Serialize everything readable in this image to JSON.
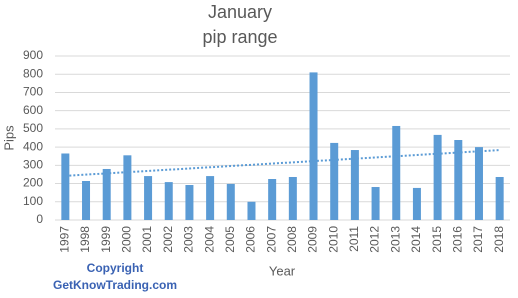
{
  "chart_data": {
    "type": "bar",
    "title": [
      "January",
      "pip range"
    ],
    "y_label": "Pips",
    "x_label": "Year",
    "annotations": [
      "Copyright",
      "GetKnowTrading.com"
    ],
    "categories": [
      "1997",
      "1998",
      "1999",
      "2000",
      "2001",
      "2002",
      "2003",
      "2004",
      "2005",
      "2006",
      "2007",
      "2008",
      "2009",
      "2010",
      "2011",
      "2012",
      "2013",
      "2014",
      "2015",
      "2016",
      "2017",
      "2018"
    ],
    "values": [
      365,
      214,
      280,
      355,
      241,
      208,
      192,
      241,
      198,
      100,
      225,
      236,
      810,
      423,
      384,
      181,
      516,
      176,
      467,
      439,
      400,
      236
    ],
    "color": "#5b9bd5",
    "ylim": [
      0,
      900
    ],
    "yticks": [
      0,
      100,
      200,
      300,
      400,
      500,
      600,
      700,
      800,
      900
    ],
    "grid": true,
    "trendline": "linear"
  }
}
